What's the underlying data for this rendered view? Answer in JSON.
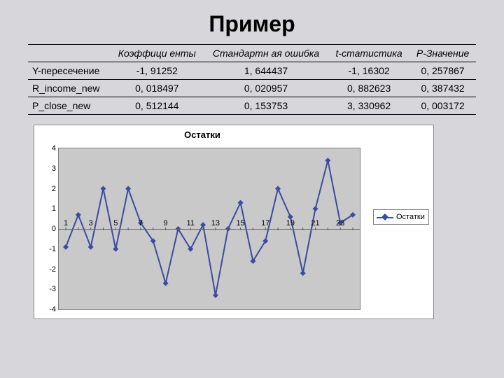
{
  "title": "Пример",
  "table": {
    "columns": [
      "",
      "Коэффици енты",
      "Стандартн ая ошибка",
      "t-статистика",
      "P-Значение"
    ],
    "rows": [
      [
        "Y-пересечение",
        "-1, 91252",
        "1, 644437",
        "-1, 16302",
        "0, 257867"
      ],
      [
        "R_income_new",
        "0, 018497",
        "0, 020957",
        "0, 882623",
        "0, 387432"
      ],
      [
        "P_close_new",
        "0, 512144",
        "0, 153753",
        "3, 330962",
        "0, 003172"
      ]
    ]
  },
  "chart": {
    "type": "line",
    "title": "Остатки",
    "series_label": "Остатки",
    "line_color": "#3b4ba0",
    "marker_color": "#3b4ba0",
    "marker_shape": "diamond",
    "plot_background": "#c9c9c9",
    "chart_background": "#ffffff",
    "grid_color": "#666666",
    "x_values": [
      1,
      2,
      3,
      4,
      5,
      6,
      7,
      8,
      9,
      10,
      11,
      12,
      13,
      14,
      15,
      16,
      17,
      18,
      19,
      20,
      21,
      22,
      23,
      24
    ],
    "x_ticks": [
      1,
      3,
      5,
      7,
      9,
      11,
      13,
      15,
      17,
      19,
      21,
      23
    ],
    "y_values": [
      -0.9,
      0.7,
      -0.9,
      2.0,
      -1.0,
      2.0,
      0.3,
      -0.6,
      -2.7,
      0.0,
      -1.0,
      0.2,
      -3.3,
      0.0,
      1.3,
      -1.6,
      -0.6,
      2.0,
      0.6,
      -2.2,
      1.0,
      3.4,
      0.3,
      0.7
    ],
    "ylim": [
      -4,
      4
    ],
    "ytick_step": 1,
    "title_fontsize": 13,
    "tick_fontsize": 11
  }
}
